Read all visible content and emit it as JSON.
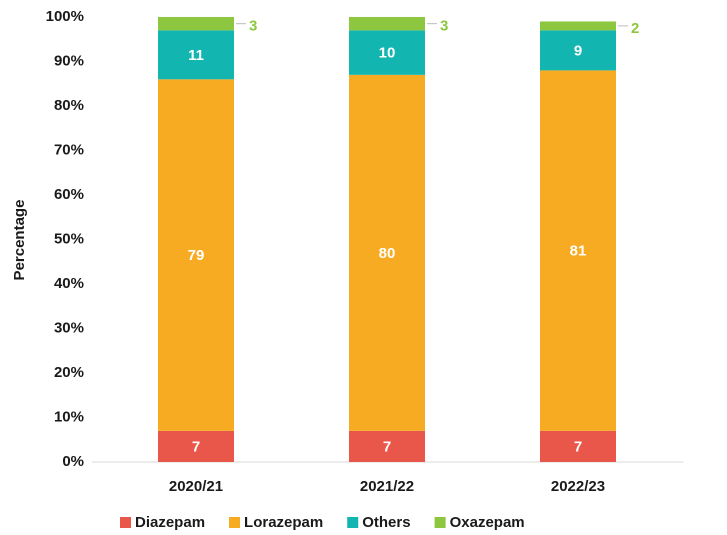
{
  "chart_data": {
    "type": "stacked_bar",
    "y_label": "Percentage",
    "categories": [
      "2020/21",
      "2021/22",
      "2022/23"
    ],
    "series": [
      {
        "name": "Diazepam",
        "color": "#e8574a",
        "values": [
          7,
          7,
          7
        ]
      },
      {
        "name": "Lorazepam",
        "color": "#f7ab22",
        "values": [
          79,
          80,
          81
        ]
      },
      {
        "name": "Others",
        "color": "#13b5b1",
        "values": [
          11,
          10,
          9
        ]
      },
      {
        "name": "Oxazepam",
        "color": "#8dc63f",
        "values": [
          3,
          3,
          2
        ]
      }
    ],
    "ylim": [
      0,
      100
    ],
    "yticks": [
      {
        "value": 0,
        "label": "0%"
      },
      {
        "value": 10,
        "label": "10%"
      },
      {
        "value": 20,
        "label": "20%"
      },
      {
        "value": 30,
        "label": "30%"
      },
      {
        "value": 40,
        "label": "40%"
      },
      {
        "value": 50,
        "label": "50%"
      },
      {
        "value": 60,
        "label": "60%"
      },
      {
        "value": 70,
        "label": "70%"
      },
      {
        "value": 80,
        "label": "80%"
      },
      {
        "value": 90,
        "label": "90%"
      },
      {
        "value": 100,
        "label": "100%"
      }
    ],
    "legend": "bottom",
    "outside_label_series": "Oxazepam"
  }
}
